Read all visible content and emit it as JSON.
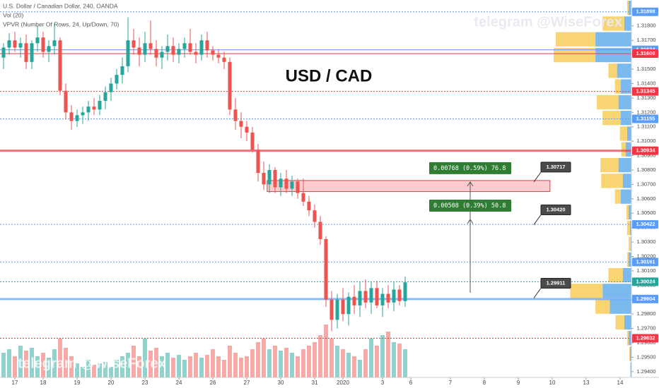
{
  "chart_data": {
    "type": "candlestick",
    "legend_lines": [
      "U.S. Dollar / Canadian Dollar, 240, OANDA",
      "Vol (20)",
      "VPVR (Number Of Rows, 24, Up/Down, 70)"
    ],
    "title": "USD / CAD",
    "watermark": "telegram @WiseForex",
    "up_color": "#26a69a",
    "down_color": "#ef5350",
    "open": [
      1.3158,
      1.3165,
      1.317,
      1.3165,
      1.3168,
      1.3155,
      1.3168,
      1.3172,
      1.3162,
      1.3166,
      1.317,
      1.3135,
      1.312,
      1.3114,
      1.3118,
      1.312,
      1.3124,
      1.3122,
      1.3128,
      1.3134,
      1.314,
      1.3146,
      1.3152,
      1.317,
      1.3165,
      1.316,
      1.3168,
      1.3164,
      1.3158,
      1.3162,
      1.3166,
      1.316,
      1.3164,
      1.3168,
      1.3162,
      1.316,
      1.317,
      1.3163,
      1.316,
      1.3158,
      1.3155,
      1.3122,
      1.3114,
      1.311,
      1.3106,
      1.3094,
      1.3078,
      1.307,
      1.308,
      1.3068,
      1.3074,
      1.3067,
      1.3072,
      1.3064,
      1.3058,
      1.3052,
      1.3044,
      1.3032,
      1.299,
      1.2976,
      1.299,
      1.298,
      1.2992,
      1.2986,
      1.2996,
      1.2988,
      1.2998,
      1.2986,
      1.2994,
      1.2988,
      1.2997,
      1.2989
    ],
    "high": [
      1.3168,
      1.3175,
      1.3176,
      1.3172,
      1.3174,
      1.317,
      1.318,
      1.3176,
      1.317,
      1.3182,
      1.3172,
      1.314,
      1.3125,
      1.3122,
      1.3124,
      1.3128,
      1.313,
      1.3132,
      1.3138,
      1.3144,
      1.315,
      1.3158,
      1.3186,
      1.3178,
      1.3172,
      1.3176,
      1.3184,
      1.317,
      1.3166,
      1.3174,
      1.3172,
      1.3168,
      1.3172,
      1.3178,
      1.3168,
      1.3174,
      1.3176,
      1.3166,
      1.3164,
      1.3162,
      1.3158,
      1.313,
      1.312,
      1.3114,
      1.311,
      1.3098,
      1.3086,
      1.3084,
      1.3082,
      1.3078,
      1.308,
      1.3076,
      1.3074,
      1.3074,
      1.3062,
      1.3056,
      1.3048,
      1.3034,
      1.2996,
      1.2994,
      1.2998,
      1.2995,
      1.3,
      1.3002,
      1.3004,
      1.3002,
      1.3003,
      1.2998,
      1.3,
      1.3002,
      1.3,
      1.3006
    ],
    "low": [
      1.315,
      1.316,
      1.3162,
      1.3158,
      1.315,
      1.315,
      1.3162,
      1.3158,
      1.3155,
      1.316,
      1.3132,
      1.3115,
      1.3108,
      1.311,
      1.3112,
      1.3114,
      1.3118,
      1.3118,
      1.3122,
      1.3128,
      1.3136,
      1.314,
      1.3148,
      1.316,
      1.3152,
      1.3155,
      1.316,
      1.3152,
      1.315,
      1.3156,
      1.3155,
      1.3154,
      1.3158,
      1.316,
      1.3154,
      1.3156,
      1.3158,
      1.3156,
      1.3154,
      1.315,
      1.3118,
      1.3108,
      1.3102,
      1.31,
      1.3092,
      1.3072,
      1.3066,
      1.3064,
      1.3064,
      1.3062,
      1.3064,
      1.3062,
      1.306,
      1.3055,
      1.3048,
      1.304,
      1.3028,
      1.2985,
      1.2968,
      1.297,
      1.2975,
      1.2972,
      1.298,
      1.2978,
      1.2984,
      1.298,
      1.2984,
      1.2978,
      1.2984,
      1.2982,
      1.2986,
      1.2985
    ],
    "close": [
      1.3165,
      1.317,
      1.3165,
      1.3168,
      1.3155,
      1.3168,
      1.3172,
      1.3162,
      1.3166,
      1.317,
      1.3135,
      1.312,
      1.3114,
      1.3118,
      1.312,
      1.3124,
      1.3122,
      1.3128,
      1.3134,
      1.314,
      1.3146,
      1.3152,
      1.317,
      1.3165,
      1.316,
      1.3168,
      1.3164,
      1.3158,
      1.3162,
      1.3166,
      1.316,
      1.3164,
      1.3168,
      1.3162,
      1.316,
      1.317,
      1.3163,
      1.316,
      1.3158,
      1.3155,
      1.3122,
      1.3114,
      1.311,
      1.3106,
      1.3094,
      1.3078,
      1.307,
      1.308,
      1.3068,
      1.3074,
      1.3067,
      1.3072,
      1.3064,
      1.3058,
      1.3052,
      1.3044,
      1.3032,
      1.299,
      1.2976,
      1.299,
      1.298,
      1.2992,
      1.2986,
      1.2996,
      1.2988,
      1.2998,
      1.2986,
      1.2994,
      1.2988,
      1.2997,
      1.2989,
      1.3002
    ],
    "volume": [
      35,
      40,
      30,
      45,
      38,
      42,
      30,
      35,
      28,
      40,
      55,
      42,
      30,
      20,
      15,
      25,
      18,
      20,
      22,
      15,
      25,
      30,
      35,
      45,
      30,
      55,
      38,
      42,
      30,
      35,
      28,
      32,
      25,
      30,
      35,
      28,
      32,
      40,
      30,
      25,
      45,
      35,
      28,
      30,
      40,
      50,
      55,
      40,
      45,
      38,
      42,
      35,
      30,
      40,
      45,
      50,
      60,
      75,
      55,
      45,
      40,
      35,
      30,
      25,
      40,
      55,
      45,
      60,
      65,
      50,
      48,
      40
    ],
    "xlim": [
      -0.625,
      111
    ],
    "xticks": [
      {
        "value": 2,
        "label": "17"
      },
      {
        "value": 7,
        "label": "18"
      },
      {
        "value": 13,
        "label": "19"
      },
      {
        "value": 19,
        "label": "20"
      },
      {
        "value": 25,
        "label": "23"
      },
      {
        "value": 31,
        "label": "24"
      },
      {
        "value": 37,
        "label": "26"
      },
      {
        "value": 43,
        "label": "27"
      },
      {
        "value": 49,
        "label": "30"
      },
      {
        "value": 55,
        "label": "31"
      },
      {
        "value": 60,
        "label": "2020"
      },
      {
        "value": 67,
        "label": "3"
      },
      {
        "value": 72,
        "label": "6"
      },
      {
        "value": 79,
        "label": "7"
      },
      {
        "value": 85,
        "label": "8"
      },
      {
        "value": 91,
        "label": "9"
      },
      {
        "value": 97,
        "label": "10"
      },
      {
        "value": 103,
        "label": "13"
      },
      {
        "value": 109,
        "label": "14"
      }
    ],
    "ylim": [
      1.2936,
      1.3198
    ],
    "yticks": [
      {
        "value": 1.294,
        "label": "1.29400"
      },
      {
        "value": 1.295,
        "label": "1.29500"
      },
      {
        "value": 1.296,
        "label": "1.29600"
      },
      {
        "value": 1.297,
        "label": "1.29700"
      },
      {
        "value": 1.298,
        "label": "1.29800"
      },
      {
        "value": 1.299,
        "label": "1.29900"
      },
      {
        "value": 1.3,
        "label": "1.30000"
      },
      {
        "value": 1.301,
        "label": "1.30100"
      },
      {
        "value": 1.302,
        "label": "1.30200"
      },
      {
        "value": 1.303,
        "label": "1.30300"
      },
      {
        "value": 1.304,
        "label": "1.30400"
      },
      {
        "value": 1.305,
        "label": "1.30500"
      },
      {
        "value": 1.306,
        "label": "1.30600"
      },
      {
        "value": 1.307,
        "label": "1.30700"
      },
      {
        "value": 1.308,
        "label": "1.30800"
      },
      {
        "value": 1.309,
        "label": "1.30900"
      },
      {
        "value": 1.31,
        "label": "1.31000"
      },
      {
        "value": 1.311,
        "label": "1.31100"
      },
      {
        "value": 1.312,
        "label": "1.31200"
      },
      {
        "value": 1.313,
        "label": "1.31300"
      },
      {
        "value": 1.314,
        "label": "1.31400"
      },
      {
        "value": 1.315,
        "label": "1.31500"
      },
      {
        "value": 1.316,
        "label": "1.31600"
      },
      {
        "value": 1.317,
        "label": "1.31700"
      },
      {
        "value": 1.318,
        "label": "1.31800"
      }
    ],
    "levels": [
      {
        "value": 1.31898,
        "color": "#5b9cf6",
        "style": "dotted"
      },
      {
        "value": 1.31634,
        "color": "#5b9cf6",
        "style": "solid"
      },
      {
        "value": 1.31608,
        "color": "#f23645",
        "style": "solid"
      },
      {
        "value": 1.31345,
        "color": "#f23645",
        "style": "dotted"
      },
      {
        "value": 1.31155,
        "color": "#5b9cf6",
        "style": "dotted"
      },
      {
        "value": 1.30934,
        "color": "#f23645",
        "style": "thick"
      },
      {
        "value": 1.30422,
        "color": "#5b9cf6",
        "style": "dotted"
      },
      {
        "value": 1.30161,
        "color": "#5b9cf6",
        "style": "dotted"
      },
      {
        "value": 1.30024,
        "color": "#26a69a",
        "style": "dotted"
      },
      {
        "value": 1.29904,
        "color": "#5b9cf6",
        "style": "thick"
      },
      {
        "value": 1.29632,
        "color": "#f23645",
        "style": "dotted"
      }
    ],
    "zone": {
      "x": [
        46.6,
        96.6
      ],
      "y": [
        1.3065,
        1.30727
      ],
      "color": "#f23645"
    },
    "measures": [
      {
        "text": "0.00768 (0.59%) 76.8",
        "from": 1.29949,
        "to": 1.30717,
        "x": 82.5
      },
      {
        "text": "0.00508 (0.39%) 50.8",
        "from": 1.29949,
        "to": 1.30457,
        "x": 82.5
      }
    ],
    "callouts": [
      {
        "price": 1.30717,
        "x": 95
      },
      {
        "price": {
          "value": 1.3042,
          "label": "1.30420"
        },
        "x": 95
      },
      {
        "price": 1.29911,
        "x": 95
      }
    ],
    "vpvr": {
      "up_color": "#4da3e8",
      "down_color": "#f7c543",
      "up": [
        4,
        10,
        50,
        50,
        20,
        15,
        18,
        15,
        6,
        8,
        18,
        12,
        15,
        4,
        2,
        1,
        4,
        12,
        40,
        30,
        10,
        4,
        2,
        1
      ],
      "down": [
        2,
        30,
        55,
        58,
        12,
        8,
        30,
        25,
        10,
        6,
        25,
        30,
        8,
        3,
        4,
        3,
        2,
        20,
        45,
        20,
        12,
        2,
        1,
        1
      ]
    }
  }
}
